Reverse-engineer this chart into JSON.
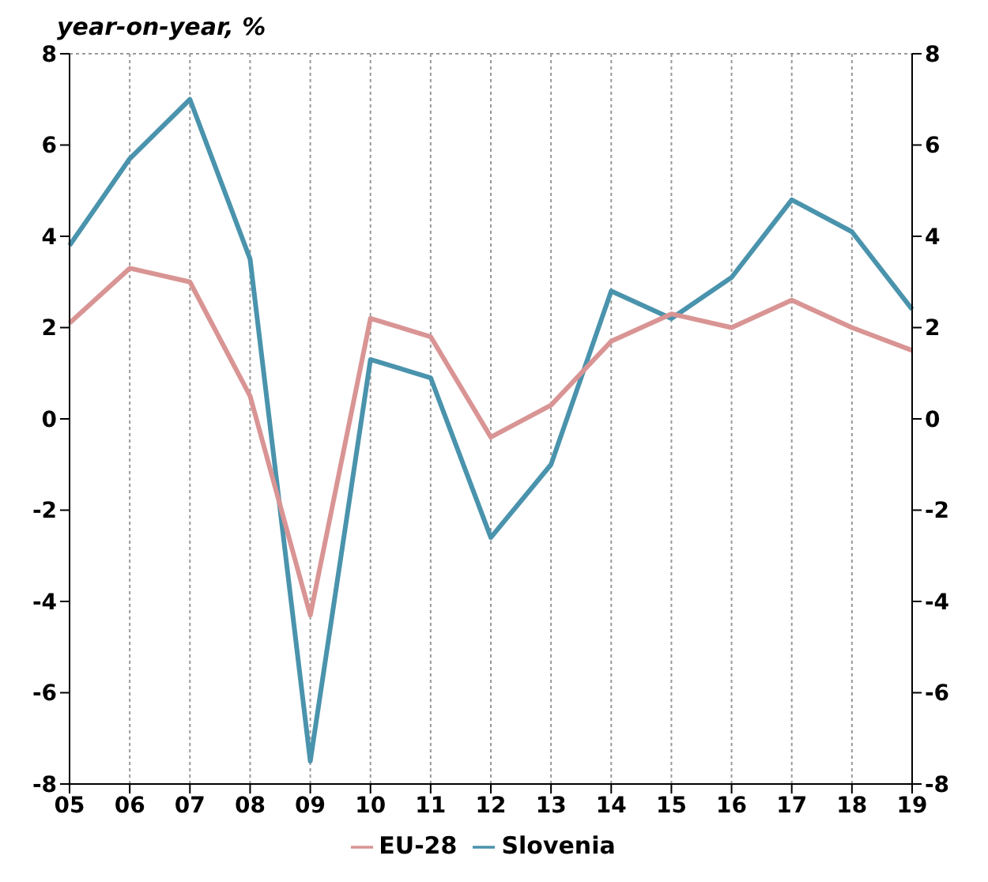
{
  "chart_data": {
    "type": "line",
    "ylabel": "year-on-year, %",
    "categories": [
      "05",
      "06",
      "07",
      "08",
      "09",
      "10",
      "11",
      "12",
      "13",
      "14",
      "15",
      "16",
      "17",
      "18",
      "19"
    ],
    "series": [
      {
        "name": "Slovenia",
        "color": "#4a93ad",
        "values": [
          3.8,
          5.7,
          7.0,
          3.5,
          -7.5,
          1.3,
          0.9,
          -2.6,
          -1.0,
          2.8,
          2.2,
          3.1,
          4.8,
          4.1,
          2.4
        ]
      },
      {
        "name": "EU-28",
        "color": "#d99494",
        "values": [
          2.1,
          3.3,
          3.0,
          0.5,
          -4.3,
          2.2,
          1.8,
          -0.4,
          0.3,
          1.7,
          2.3,
          2.0,
          2.6,
          2.0,
          1.5
        ]
      }
    ],
    "ylim": [
      -8,
      8
    ],
    "yticks": [
      -8,
      -6,
      -4,
      -2,
      0,
      2,
      4,
      6,
      8
    ],
    "y2lim": [
      -8,
      8
    ],
    "y2ticks": [
      -8,
      -6,
      -4,
      -2,
      0,
      2,
      4,
      6,
      8
    ],
    "grid": true,
    "legend": "bottom",
    "marker": "none",
    "line_style": "solid"
  }
}
